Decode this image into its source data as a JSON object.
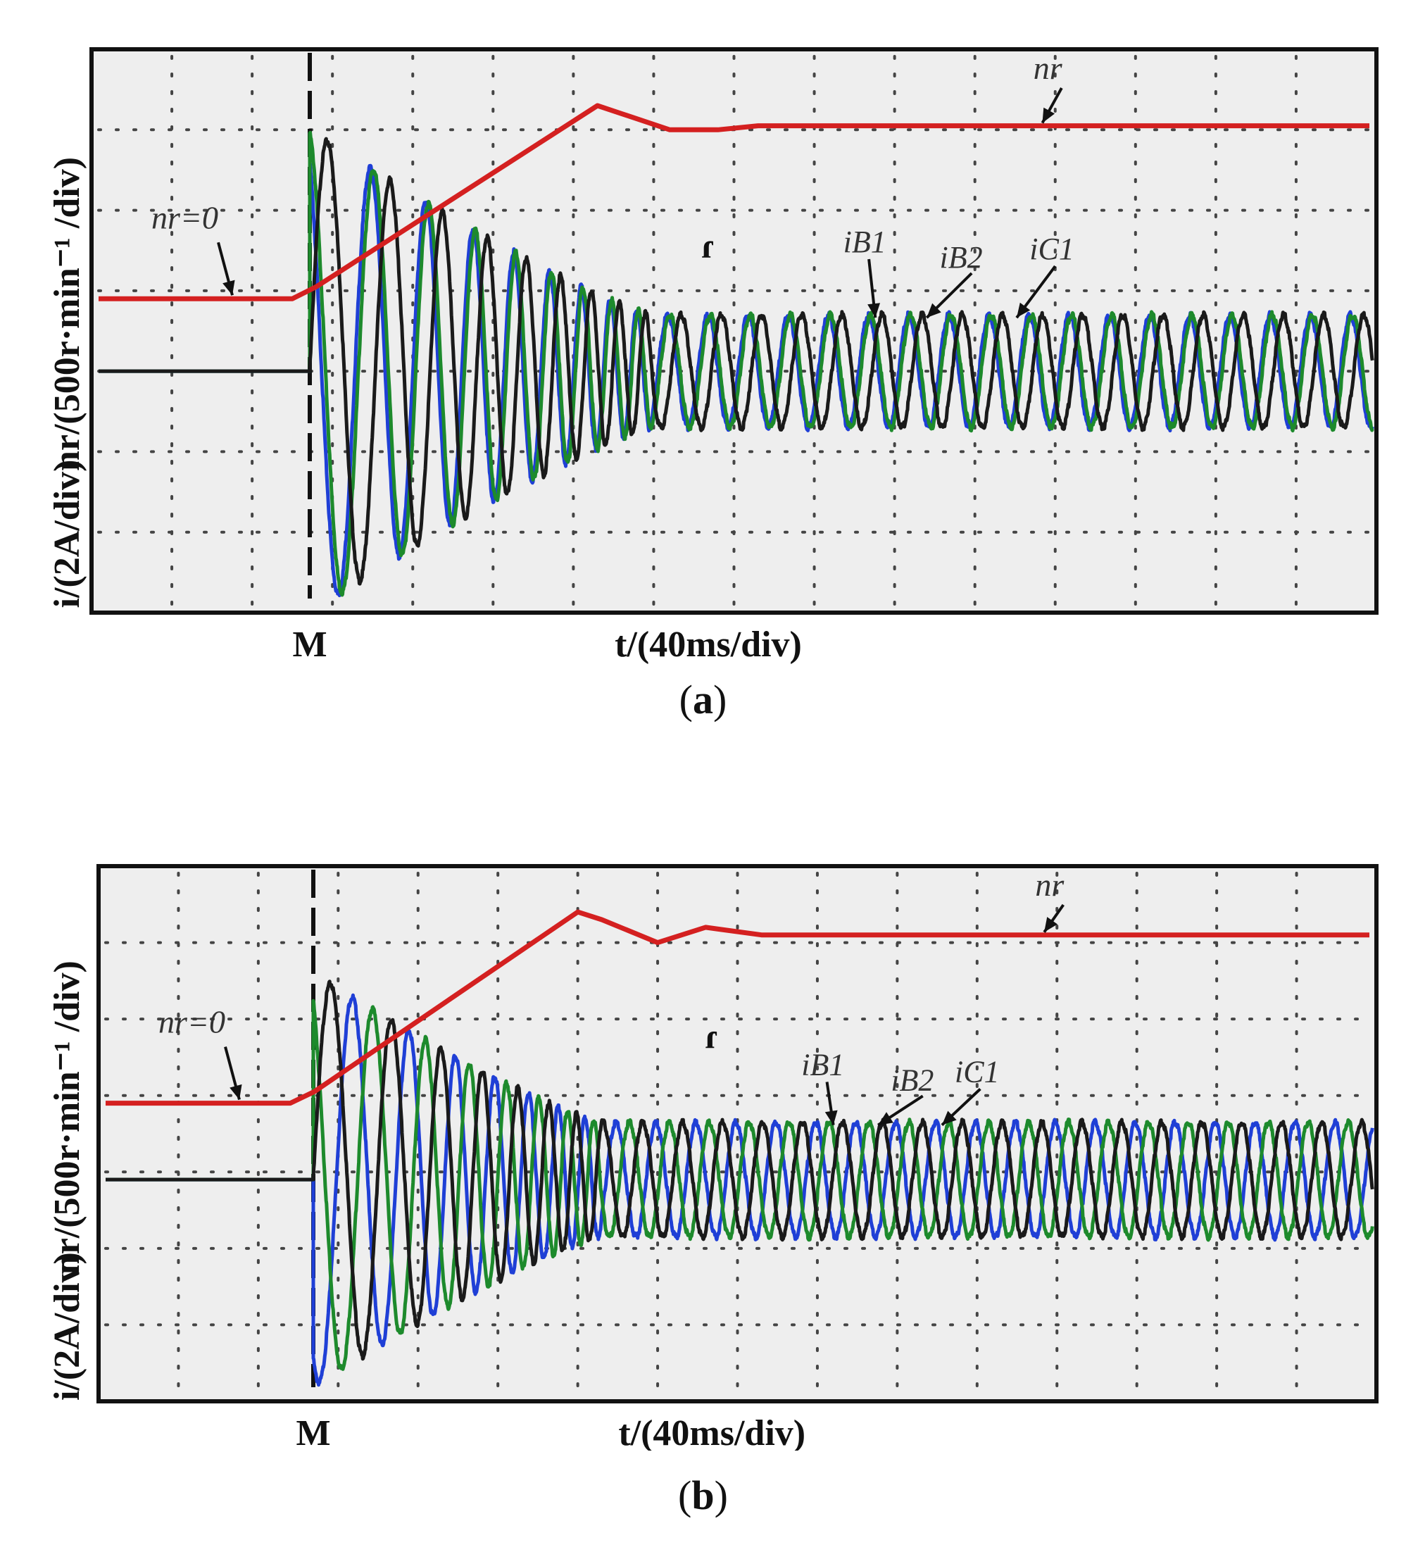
{
  "figures": [
    {
      "caption_letter": "a",
      "ylabel_speed": "nr/(500r·min⁻¹ /div)",
      "ylabel_current": "i/(2A/div)",
      "xlabel": "t/(40ms/div)",
      "marker_label": "M",
      "trigger_symbol": "ɾ",
      "annotations": {
        "nr_zero": "nr=0",
        "nr": "nr",
        "iB1": "iB1",
        "iB2": "iB2",
        "iC1": "iC1"
      }
    },
    {
      "caption_letter": "b",
      "ylabel_speed": "nr/(500r·min⁻¹ /div)",
      "ylabel_current": "i/(2A/div)",
      "xlabel": "t/(40ms/div)",
      "marker_label": "M",
      "trigger_symbol": "ɾ",
      "annotations": {
        "nr_zero": "nr=0",
        "nr": "nr",
        "iB1": "iB1",
        "iB2": "iB2",
        "iC1": "iC1"
      }
    }
  ],
  "colors": {
    "speed": "#d42020",
    "iB1": "#1f3fd6",
    "iB2": "#1d8a2c",
    "iC1": "#1a1a1a",
    "screen": "#eeeeee",
    "grid": "#444444"
  },
  "chart_data": [
    {
      "type": "line",
      "x_unit_per_div": "40ms",
      "x_divisions": 16,
      "y_divisions": 7,
      "trigger_x_div": 2.7,
      "series": [
        {
          "name": "nr",
          "points_div": [
            [
              0,
              3.9
            ],
            [
              2.5,
              3.9
            ],
            [
              2.8,
              4.05
            ],
            [
              6.3,
              6.3
            ],
            [
              6.6,
              6.2
            ],
            [
              7.2,
              6.0
            ],
            [
              7.8,
              6.0
            ],
            [
              8.3,
              6.05
            ],
            [
              16,
              6.05
            ]
          ]
        },
        {
          "name": "iB1",
          "base_div": 3.0,
          "before_trigger_div": 3.0,
          "transient_amplitude_div": 3.0,
          "steady_amplitude_div": 0.7,
          "settle_x_div": 7.0,
          "steady_period_div": 0.5,
          "phase_deg": 120
        },
        {
          "name": "iB2",
          "base_div": 3.0,
          "before_trigger_div": 3.0,
          "transient_amplitude_div": 3.0,
          "steady_amplitude_div": 0.7,
          "settle_x_div": 7.0,
          "steady_period_div": 0.5,
          "phase_deg": 100
        },
        {
          "name": "iC1",
          "base_div": 3.0,
          "before_trigger_div": 3.0,
          "transient_amplitude_div": 3.0,
          "steady_amplitude_div": 0.7,
          "settle_x_div": 7.0,
          "steady_period_div": 0.5,
          "phase_deg": 0
        }
      ]
    },
    {
      "type": "line",
      "x_unit_per_div": "40ms",
      "x_divisions": 16,
      "y_divisions": 7,
      "trigger_x_div": 2.7,
      "series": [
        {
          "name": "nr",
          "points_div": [
            [
              0,
              3.9
            ],
            [
              2.4,
              3.9
            ],
            [
              2.7,
              4.05
            ],
            [
              6.0,
              6.4
            ],
            [
              6.3,
              6.3
            ],
            [
              7.0,
              6.0
            ],
            [
              7.6,
              6.2
            ],
            [
              8.3,
              6.1
            ],
            [
              16,
              6.1
            ]
          ]
        },
        {
          "name": "iB1",
          "base_div": 2.9,
          "before_trigger_div": 2.9,
          "transient_amplitude_div": 2.7,
          "steady_amplitude_div": 0.75,
          "settle_x_div": 6.3,
          "steady_period_div": 0.5,
          "phase_deg": 240
        },
        {
          "name": "iB2",
          "base_div": 2.9,
          "before_trigger_div": 2.9,
          "transient_amplitude_div": 2.7,
          "steady_amplitude_div": 0.75,
          "settle_x_div": 6.3,
          "steady_period_div": 0.5,
          "phase_deg": 120
        },
        {
          "name": "iC1",
          "base_div": 2.9,
          "before_trigger_div": 2.9,
          "transient_amplitude_div": 2.7,
          "steady_amplitude_div": 0.75,
          "settle_x_div": 6.3,
          "steady_period_div": 0.5,
          "phase_deg": 0
        }
      ]
    }
  ]
}
